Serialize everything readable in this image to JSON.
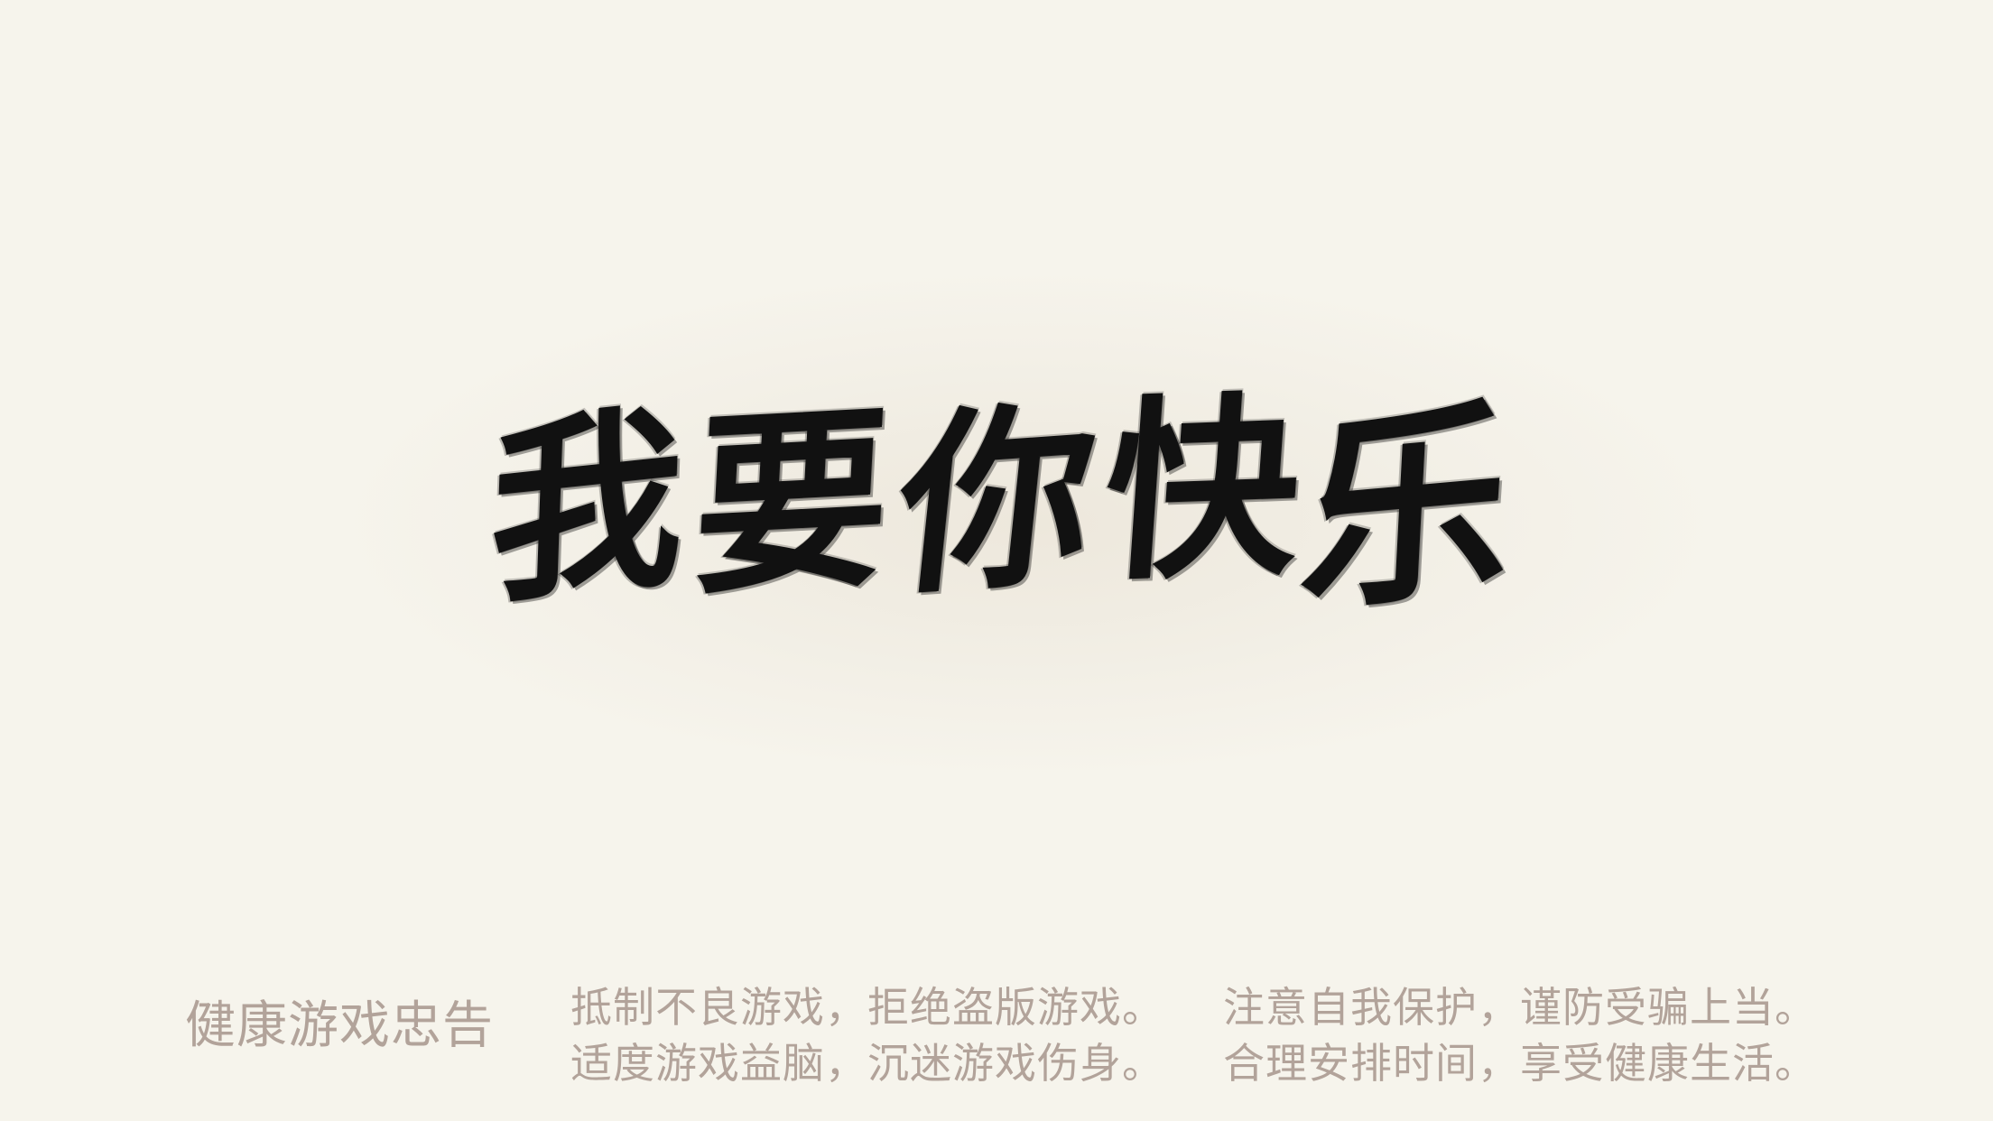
{
  "slogan": {
    "characters": [
      "我",
      "要",
      "你",
      "快",
      "乐"
    ],
    "color": "#111111"
  },
  "health_advisory": {
    "title": "健康游戏忠告",
    "lines": [
      "抵制不良游戏，拒绝盗版游戏。",
      "适度游戏益脑，沉迷游戏伤身。",
      "注意自我保护，谨防受骗上当。",
      "合理安排时间，享受健康生活。"
    ],
    "text_color": "#b2a39a"
  },
  "background_color": "#f6f4ec"
}
